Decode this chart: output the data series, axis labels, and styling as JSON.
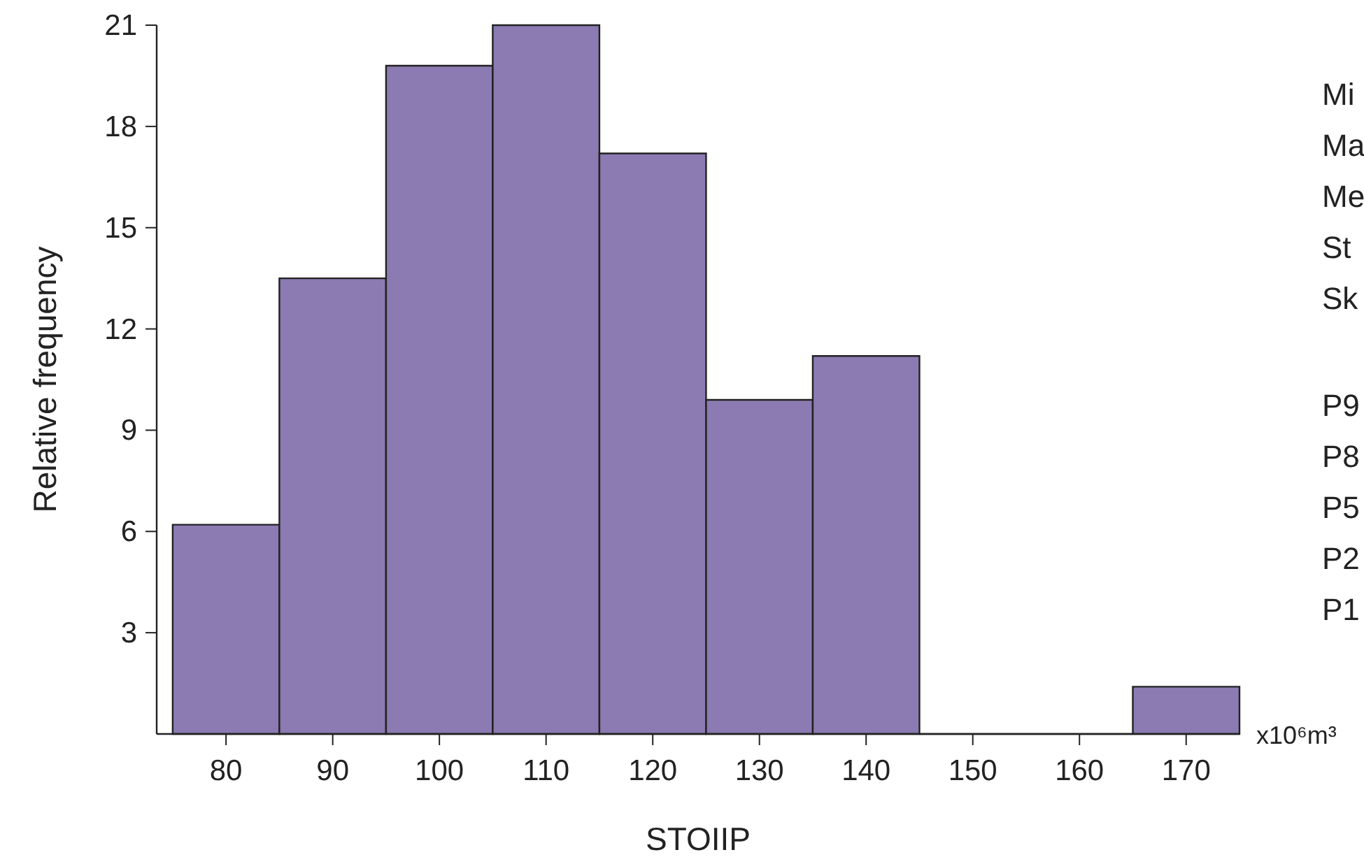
{
  "chart_data": {
    "type": "histogram",
    "xlabel": "STOIIP",
    "ylabel": "Relative frequency",
    "bins": [
      75,
      85,
      95,
      105,
      115,
      125,
      135,
      145,
      155,
      165,
      175
    ],
    "values": [
      6.2,
      13.5,
      19.8,
      21.0,
      17.2,
      9.9,
      11.2,
      0,
      0,
      1.4
    ],
    "color": "#8b7bb2",
    "xlim": [
      73.5,
      175
    ],
    "ylim": [
      0,
      21
    ],
    "xticks": [
      80,
      90,
      100,
      110,
      120,
      130,
      140,
      150,
      160,
      170
    ],
    "yticks": [
      3,
      6,
      9,
      12,
      15,
      18,
      21
    ],
    "grid": false,
    "annotations": [
      "x10⁶m³",
      "Mi",
      "Ma",
      "Me",
      "St",
      "Sk",
      "P9",
      "P8",
      "P5",
      "P2",
      "P1"
    ]
  }
}
